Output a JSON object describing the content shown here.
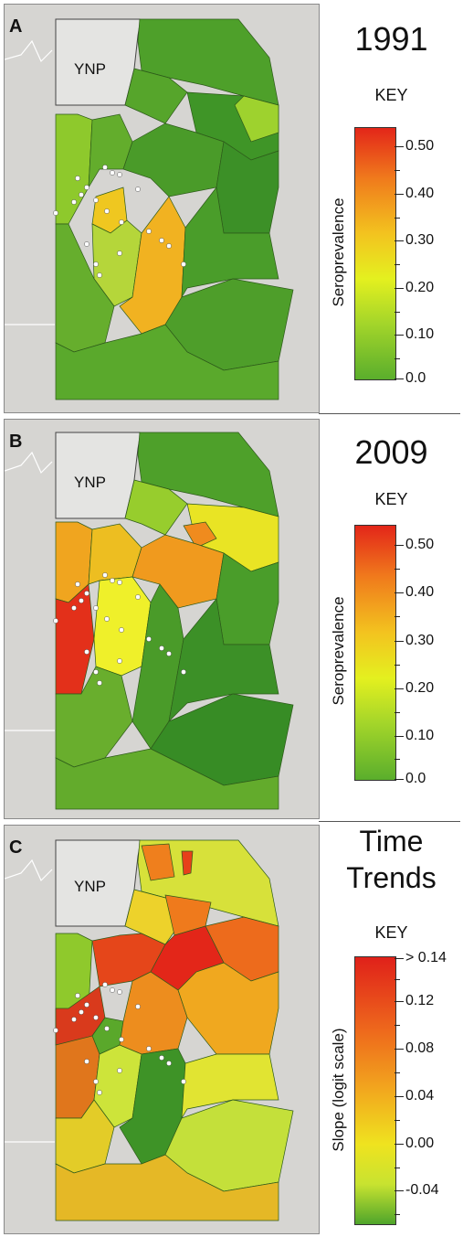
{
  "park_label": "YNP",
  "panels": [
    {
      "letter": "A",
      "title": "1991",
      "key": "KEY",
      "axis": "Seroprevalence",
      "ticks": [
        "0.50",
        "0.40",
        "0.30",
        "0.20",
        "0.10",
        "0.0"
      ]
    },
    {
      "letter": "B",
      "title": "2009",
      "key": "KEY",
      "axis": "Seroprevalence",
      "ticks": [
        "0.50",
        "0.40",
        "0.30",
        "0.20",
        "0.10",
        "0.0"
      ]
    },
    {
      "letter": "C",
      "title_line1": "Time",
      "title_line2": "Trends",
      "key": "KEY",
      "axis": "Slope (logit scale)",
      "ticks": [
        "> 0.14",
        "0.12",
        "0.08",
        "0.04",
        "0.00",
        "-0.04"
      ]
    }
  ],
  "colors": {
    "seroprevalence_scale": [
      "#e32619",
      "#f07a1c",
      "#f3c31f",
      "#e4f01f",
      "#a3d52a",
      "#5aae2c"
    ],
    "trend_scale": [
      "#e0211a",
      "#ee6a1c",
      "#f2a81e",
      "#efe31f",
      "#c8e330",
      "#4fa52b"
    ],
    "basemap": "#d9d8d5",
    "park": "#e2e2e0"
  }
}
